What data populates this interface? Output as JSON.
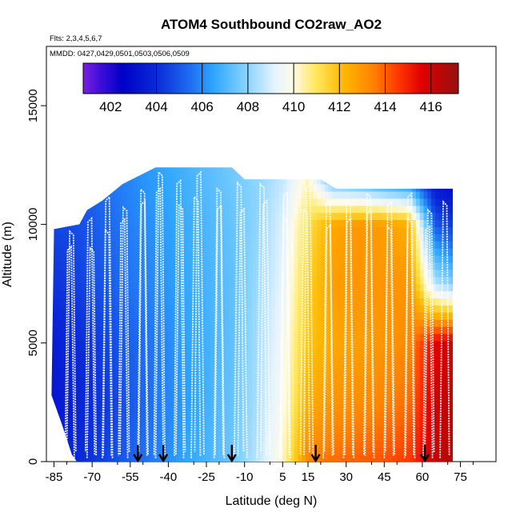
{
  "chart_data": {
    "type": "heatmap",
    "title": "ATOM4 Southbound CO2raw_AO2",
    "subtitle_flights": "Flts: 2,3,4,5,6,7",
    "subtitle_dates": "MMDD: 0427,0429,0501,0503,0506,0509",
    "xlabel": "Latitude (deg N)",
    "ylabel": "Altitude (m)",
    "xlim": [
      -88,
      89
    ],
    "ylim": [
      0,
      17500
    ],
    "x_ticks": [
      -85,
      -70,
      -55,
      -40,
      -25,
      -10,
      5,
      15,
      30,
      45,
      60,
      75
    ],
    "y_ticks": [
      0,
      5000,
      10000,
      15000
    ],
    "y_tick_labels": [
      "0",
      "5000",
      "10000",
      "15000"
    ],
    "colorbar": {
      "label_values": [
        402,
        404,
        406,
        408,
        410,
        412,
        414,
        416
      ],
      "vmin": 400.8,
      "vmax": 417.2,
      "tick_values": [
        400.8,
        404,
        406,
        408,
        410,
        412,
        414,
        416
      ],
      "stops": [
        {
          "value": 400.8,
          "color": "#7a1fe0"
        },
        {
          "value": 401.6,
          "color": "#3a0ed8"
        },
        {
          "value": 402.5,
          "color": "#0000c8"
        },
        {
          "value": 404.0,
          "color": "#0a2ad8"
        },
        {
          "value": 405.5,
          "color": "#1f6ef2"
        },
        {
          "value": 406.5,
          "color": "#2fa6ff"
        },
        {
          "value": 407.8,
          "color": "#7fd0ff"
        },
        {
          "value": 409.2,
          "color": "#e6f4ff"
        },
        {
          "value": 410.0,
          "color": "#fffbe6"
        },
        {
          "value": 411.0,
          "color": "#ffe65a"
        },
        {
          "value": 412.2,
          "color": "#ffb800"
        },
        {
          "value": 413.5,
          "color": "#ff8000"
        },
        {
          "value": 414.6,
          "color": "#ff3500"
        },
        {
          "value": 415.6,
          "color": "#e00000"
        },
        {
          "value": 417.2,
          "color": "#951010"
        }
      ]
    },
    "field": {
      "latitude_grid": [
        -85,
        -75,
        -65,
        -55,
        -45,
        -35,
        -25,
        -15,
        -5,
        5,
        15,
        25,
        35,
        45,
        55,
        65,
        72
      ],
      "altitude_grid": [
        0,
        2500,
        5000,
        7500,
        10000,
        12500
      ],
      "co2_ppm": [
        [
          403.5,
          404.0,
          404.5,
          405.2,
          405.8,
          406.4,
          406.9,
          407.5,
          408.6,
          410.2,
          413.4,
          413.8,
          414.0,
          414.2,
          414.6,
          416.2,
          416.6
        ],
        [
          403.3,
          403.8,
          404.3,
          405.0,
          405.6,
          406.2,
          406.8,
          407.4,
          408.4,
          409.8,
          412.4,
          413.0,
          413.2,
          413.4,
          413.8,
          416.0,
          416.4
        ],
        [
          403.6,
          404.0,
          404.5,
          405.2,
          405.7,
          406.3,
          406.8,
          407.3,
          408.3,
          409.6,
          411.9,
          412.6,
          412.8,
          413.0,
          413.3,
          415.6,
          416.0
        ],
        [
          404.2,
          404.5,
          405.0,
          405.6,
          406.0,
          406.5,
          406.9,
          407.3,
          408.2,
          409.3,
          411.6,
          412.8,
          413.0,
          413.0,
          413.0,
          408.6,
          407.8
        ],
        [
          404.6,
          404.8,
          405.3,
          405.8,
          406.2,
          406.6,
          407.0,
          407.4,
          408.0,
          409.1,
          411.2,
          412.6,
          413.0,
          412.8,
          412.4,
          405.0,
          404.4
        ],
        [
          405.0,
          405.2,
          405.6,
          406.0,
          406.4,
          406.8,
          407.2,
          407.6,
          408.0,
          408.6,
          410.0,
          405.5,
          404.8,
          404.0,
          403.4,
          402.6,
          402.0
        ]
      ]
    },
    "sampled_region": {
      "top_altitude": [
        {
          "lat": -85,
          "alt": 9800
        },
        {
          "lat": -75,
          "alt": 10000
        },
        {
          "lat": -72,
          "alt": 10600
        },
        {
          "lat": -66,
          "alt": 11000
        },
        {
          "lat": -58,
          "alt": 11700
        },
        {
          "lat": -45,
          "alt": 12400
        },
        {
          "lat": -15,
          "alt": 12400
        },
        {
          "lat": -10,
          "alt": 11900
        },
        {
          "lat": 20,
          "alt": 11900
        },
        {
          "lat": 26,
          "alt": 11500
        },
        {
          "lat": 66,
          "alt": 11500
        },
        {
          "lat": 72,
          "alt": 11500
        }
      ],
      "bottom_altitude": [
        {
          "lat": -86,
          "alt": 2800
        },
        {
          "lat": -82,
          "alt": 1600
        },
        {
          "lat": -78,
          "alt": 300
        },
        {
          "lat": -76,
          "alt": 0
        },
        {
          "lat": 72,
          "alt": 0
        }
      ]
    },
    "profile_latitudes": [
      -80,
      -77,
      -72,
      -69,
      -66,
      -62,
      -59,
      -56,
      -52,
      -48,
      -45,
      -42,
      -37,
      -34,
      -31,
      -26,
      -22,
      -18,
      -14,
      -9,
      -5,
      0,
      4,
      8,
      12,
      17,
      21,
      25,
      29,
      33,
      37,
      41,
      45,
      49,
      53,
      57,
      61,
      64,
      67
    ],
    "sonde_arrow_latitudes": [
      -52,
      -42,
      -15,
      18,
      61
    ]
  }
}
